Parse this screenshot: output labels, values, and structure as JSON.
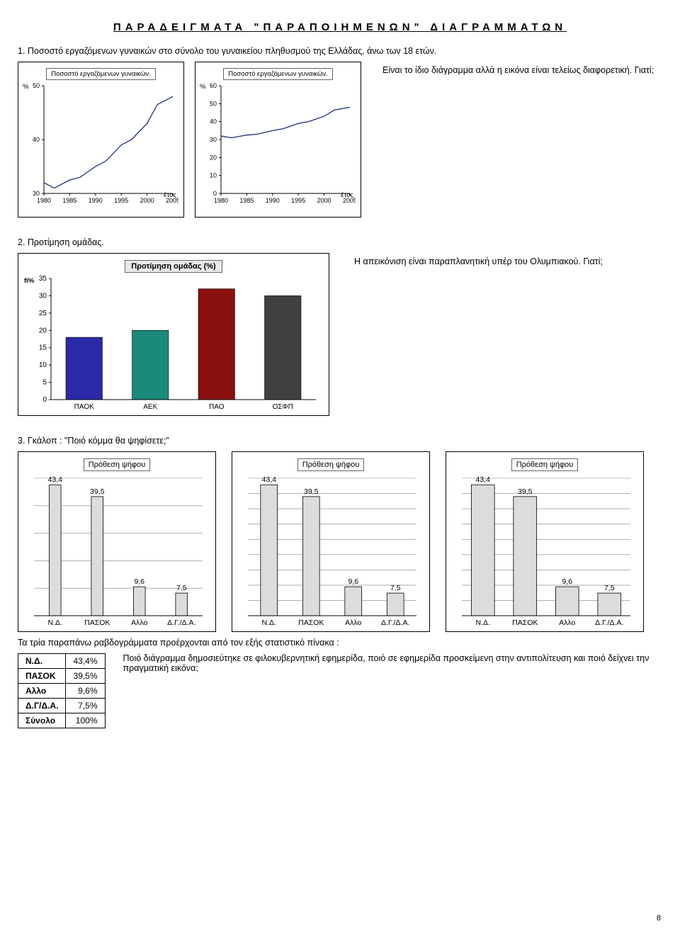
{
  "page_title": "ΠΑΡΑΔΕΙΓΜΑΤΑ \"ΠΑΡΑΠΟΙΗΜΕΝΩΝ\" ΔΙΑΓΡΑΜΜΑΤΩΝ",
  "page_number": "8",
  "section1": {
    "label": "1. Ποσοστό εργαζόμενων γυναικών στο σύνολο του γυναικείου πληθυσμού της Ελλάδας, άνω των 18 ετών.",
    "note": "Είναι το ίδιο διάγραμμα αλλά η εικόνα είναι τελείως διαφορετική. Γιατί;",
    "chartA": {
      "type": "line",
      "legend": "Ποσοστό εργαζόμενων γυναικών.",
      "y_unit": "%",
      "ylim": [
        30,
        50
      ],
      "yticks": [
        30,
        40,
        50
      ],
      "x_label": "έτος",
      "xticks": [
        1980,
        1985,
        1990,
        1995,
        2000,
        2005
      ],
      "points": [
        [
          1980,
          32
        ],
        [
          1982,
          31
        ],
        [
          1985,
          32.5
        ],
        [
          1987,
          33
        ],
        [
          1990,
          35
        ],
        [
          1992,
          36
        ],
        [
          1995,
          39
        ],
        [
          1997,
          40
        ],
        [
          2000,
          43
        ],
        [
          2002,
          46.5
        ],
        [
          2005,
          48
        ]
      ],
      "line_color": "#1a2a8a",
      "line_width": 1.3,
      "background_color": "#ffffff",
      "tick_fontsize": 9
    },
    "chartB": {
      "type": "line",
      "legend": "Ποσοστό εργαζόμενων γυναικών.",
      "y_unit": "%",
      "ylim": [
        0,
        60
      ],
      "yticks": [
        0,
        10,
        20,
        30,
        40,
        50,
        60
      ],
      "x_label": "έτος",
      "xticks": [
        1980,
        1985,
        1990,
        1995,
        2000,
        2005
      ],
      "points": [
        [
          1980,
          32
        ],
        [
          1982,
          31
        ],
        [
          1985,
          32.5
        ],
        [
          1987,
          33
        ],
        [
          1990,
          35
        ],
        [
          1992,
          36
        ],
        [
          1995,
          39
        ],
        [
          1997,
          40
        ],
        [
          2000,
          43
        ],
        [
          2002,
          46.5
        ],
        [
          2005,
          48
        ]
      ],
      "line_color": "#1a2a8a",
      "line_width": 1.3,
      "background_color": "#ffffff",
      "tick_fontsize": 9
    }
  },
  "section2": {
    "label": "2. Προτίμηση ομάδας.",
    "note": "Η απεικόνιση είναι παραπλανητική υπέρ του Ολυμπιακού. Γιατί;",
    "chart": {
      "type": "bar",
      "title": "Προτίμηση ομάδας (%)",
      "y_unit": "fi%",
      "ylim": [
        0,
        35
      ],
      "ytick_step": 5,
      "categories": [
        "ΠΑΟΚ",
        "ΑΕΚ",
        "ΠΑΟ",
        "ΟΣΦΠ"
      ],
      "values": [
        18,
        20,
        32,
        30
      ],
      "bar_colors": [
        "#2a2aa8",
        "#1a8a7a",
        "#8a1010",
        "#404040"
      ],
      "background_color": "#ffffff",
      "tick_fontsize": 10,
      "label_fontsize": 10,
      "bar_width": 0.55
    }
  },
  "section3": {
    "label": "3. Γκάλοπ : \"Ποιό κόμμα θα ψηφίσετε;\"",
    "title_label": "Πρόθεση ψήφου",
    "categories": [
      "Ν.Δ.",
      "ΠΑΣΟΚ",
      "Αλλο",
      "Δ.Γ./Δ.Α."
    ],
    "labels": [
      "43,4",
      "39,5",
      "9,6",
      "7,5"
    ],
    "values": [
      43.4,
      39.5,
      9.6,
      7.5
    ],
    "bar_fill": "#dcdcdc",
    "bar_stroke": "#000000",
    "grid_color": "#808080",
    "chartA": {
      "gridlines": 5,
      "bar_width": 0.28
    },
    "chartB": {
      "gridlines": 9,
      "bar_width": 0.4
    },
    "chartC": {
      "gridlines": 9,
      "bar_width": 0.55
    },
    "conclusion": "Τα τρία παραπάνω ραβδογράμματα προέρχονται από τον εξής στατιστικό πίνακα :",
    "table": {
      "rows": [
        [
          "Ν.Δ.",
          "43,4%"
        ],
        [
          "ΠΑΣΟΚ",
          "39,5%"
        ],
        [
          "Αλλο",
          "9,6%"
        ],
        [
          "Δ.Γ/Δ.Α.",
          "7,5%"
        ],
        [
          "Σύνολο",
          "100%"
        ]
      ]
    },
    "question": "Ποιό διάγραμμα δημοσιεύτηκε σε φιλοκυβερνητική εφημερίδα, ποιό σε εφημερίδα προσκείμενη στην αντιπολίτευση και ποιό δείχνει την πραγματική εικόνα;"
  }
}
